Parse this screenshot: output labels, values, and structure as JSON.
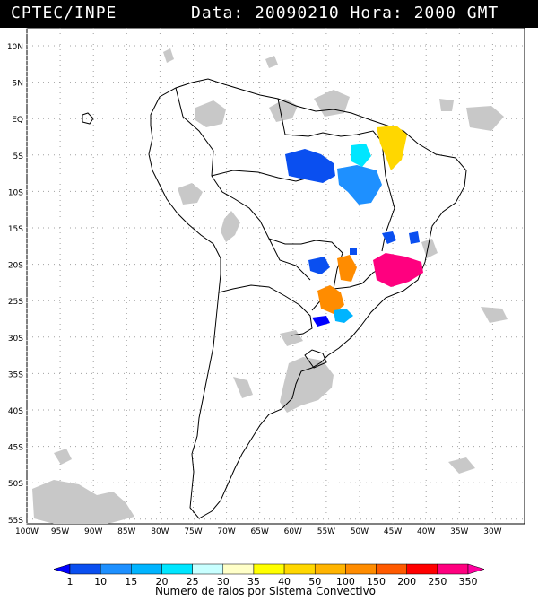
{
  "header": {
    "source": "CPTEC/INPE",
    "datetime": "Data: 20090210 Hora: 2000 GMT"
  },
  "map": {
    "lat_labels": [
      "10N",
      "5N",
      "EQ",
      "5S",
      "10S",
      "15S",
      "20S",
      "25S",
      "30S",
      "35S",
      "40S",
      "45S",
      "50S",
      "55S"
    ],
    "lon_labels": [
      "100W",
      "95W",
      "90W",
      "85W",
      "80W",
      "75W",
      "70W",
      "65W",
      "60W",
      "55W",
      "50W",
      "45W",
      "40W",
      "35W",
      "30W"
    ],
    "grid": "dotted",
    "colors": {
      "background": "#ffffff",
      "cloud": "#c8c8c8",
      "coast": "#000000",
      "grid": "#a0a0a0"
    }
  },
  "legend": {
    "title": "Numero de raios por Sistema Convectivo",
    "ticks": [
      "1",
      "10",
      "15",
      "20",
      "25",
      "30",
      "35",
      "40",
      "50",
      "100",
      "150",
      "200",
      "250",
      "350"
    ],
    "colors": [
      "#0000ff",
      "#0a4ff0",
      "#1e90ff",
      "#00b4ff",
      "#00e6ff",
      "#c8ffff",
      "#ffffc8",
      "#ffff00",
      "#ffd700",
      "#ffb400",
      "#ff8c00",
      "#ff5a00",
      "#ff0000",
      "#ff007f",
      "#ff00a0"
    ]
  }
}
